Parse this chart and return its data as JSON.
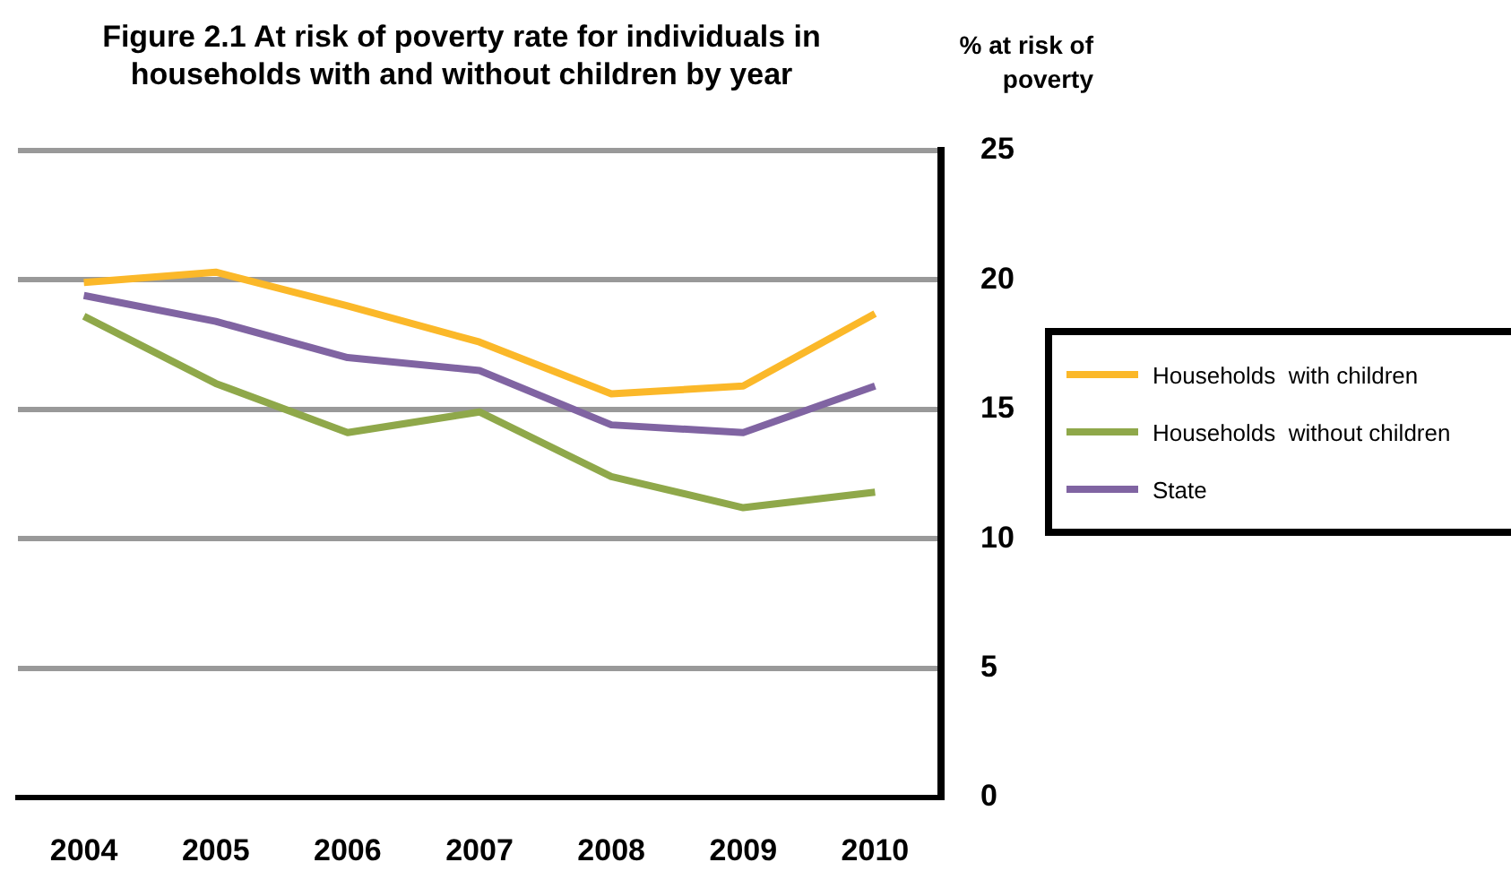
{
  "chart_data": {
    "type": "line",
    "title": "Figure 2.1  At risk of poverty rate for individuals in households with and without children  by year",
    "ylabel": "% at risk of poverty",
    "categories": [
      "2004",
      "2005",
      "2006",
      "2007",
      "2008",
      "2009",
      "2010"
    ],
    "series": [
      {
        "name": "Households  with children",
        "color": "#fbb829",
        "values": [
          19.9,
          20.3,
          19.0,
          17.6,
          15.6,
          15.9,
          18.7
        ]
      },
      {
        "name": "Households  without children",
        "color": "#8fa84a",
        "values": [
          18.6,
          16.0,
          14.1,
          14.9,
          12.4,
          11.2,
          11.8
        ]
      },
      {
        "name": "State",
        "color": "#8064a2",
        "values": [
          19.4,
          18.4,
          17.0,
          16.5,
          14.4,
          14.1,
          15.9
        ]
      }
    ],
    "ylim": [
      0,
      25
    ],
    "yticks": [
      0,
      5,
      10,
      15,
      20,
      25
    ],
    "grid": "y",
    "legend": "right",
    "marker": "none",
    "line_style": "solid"
  }
}
